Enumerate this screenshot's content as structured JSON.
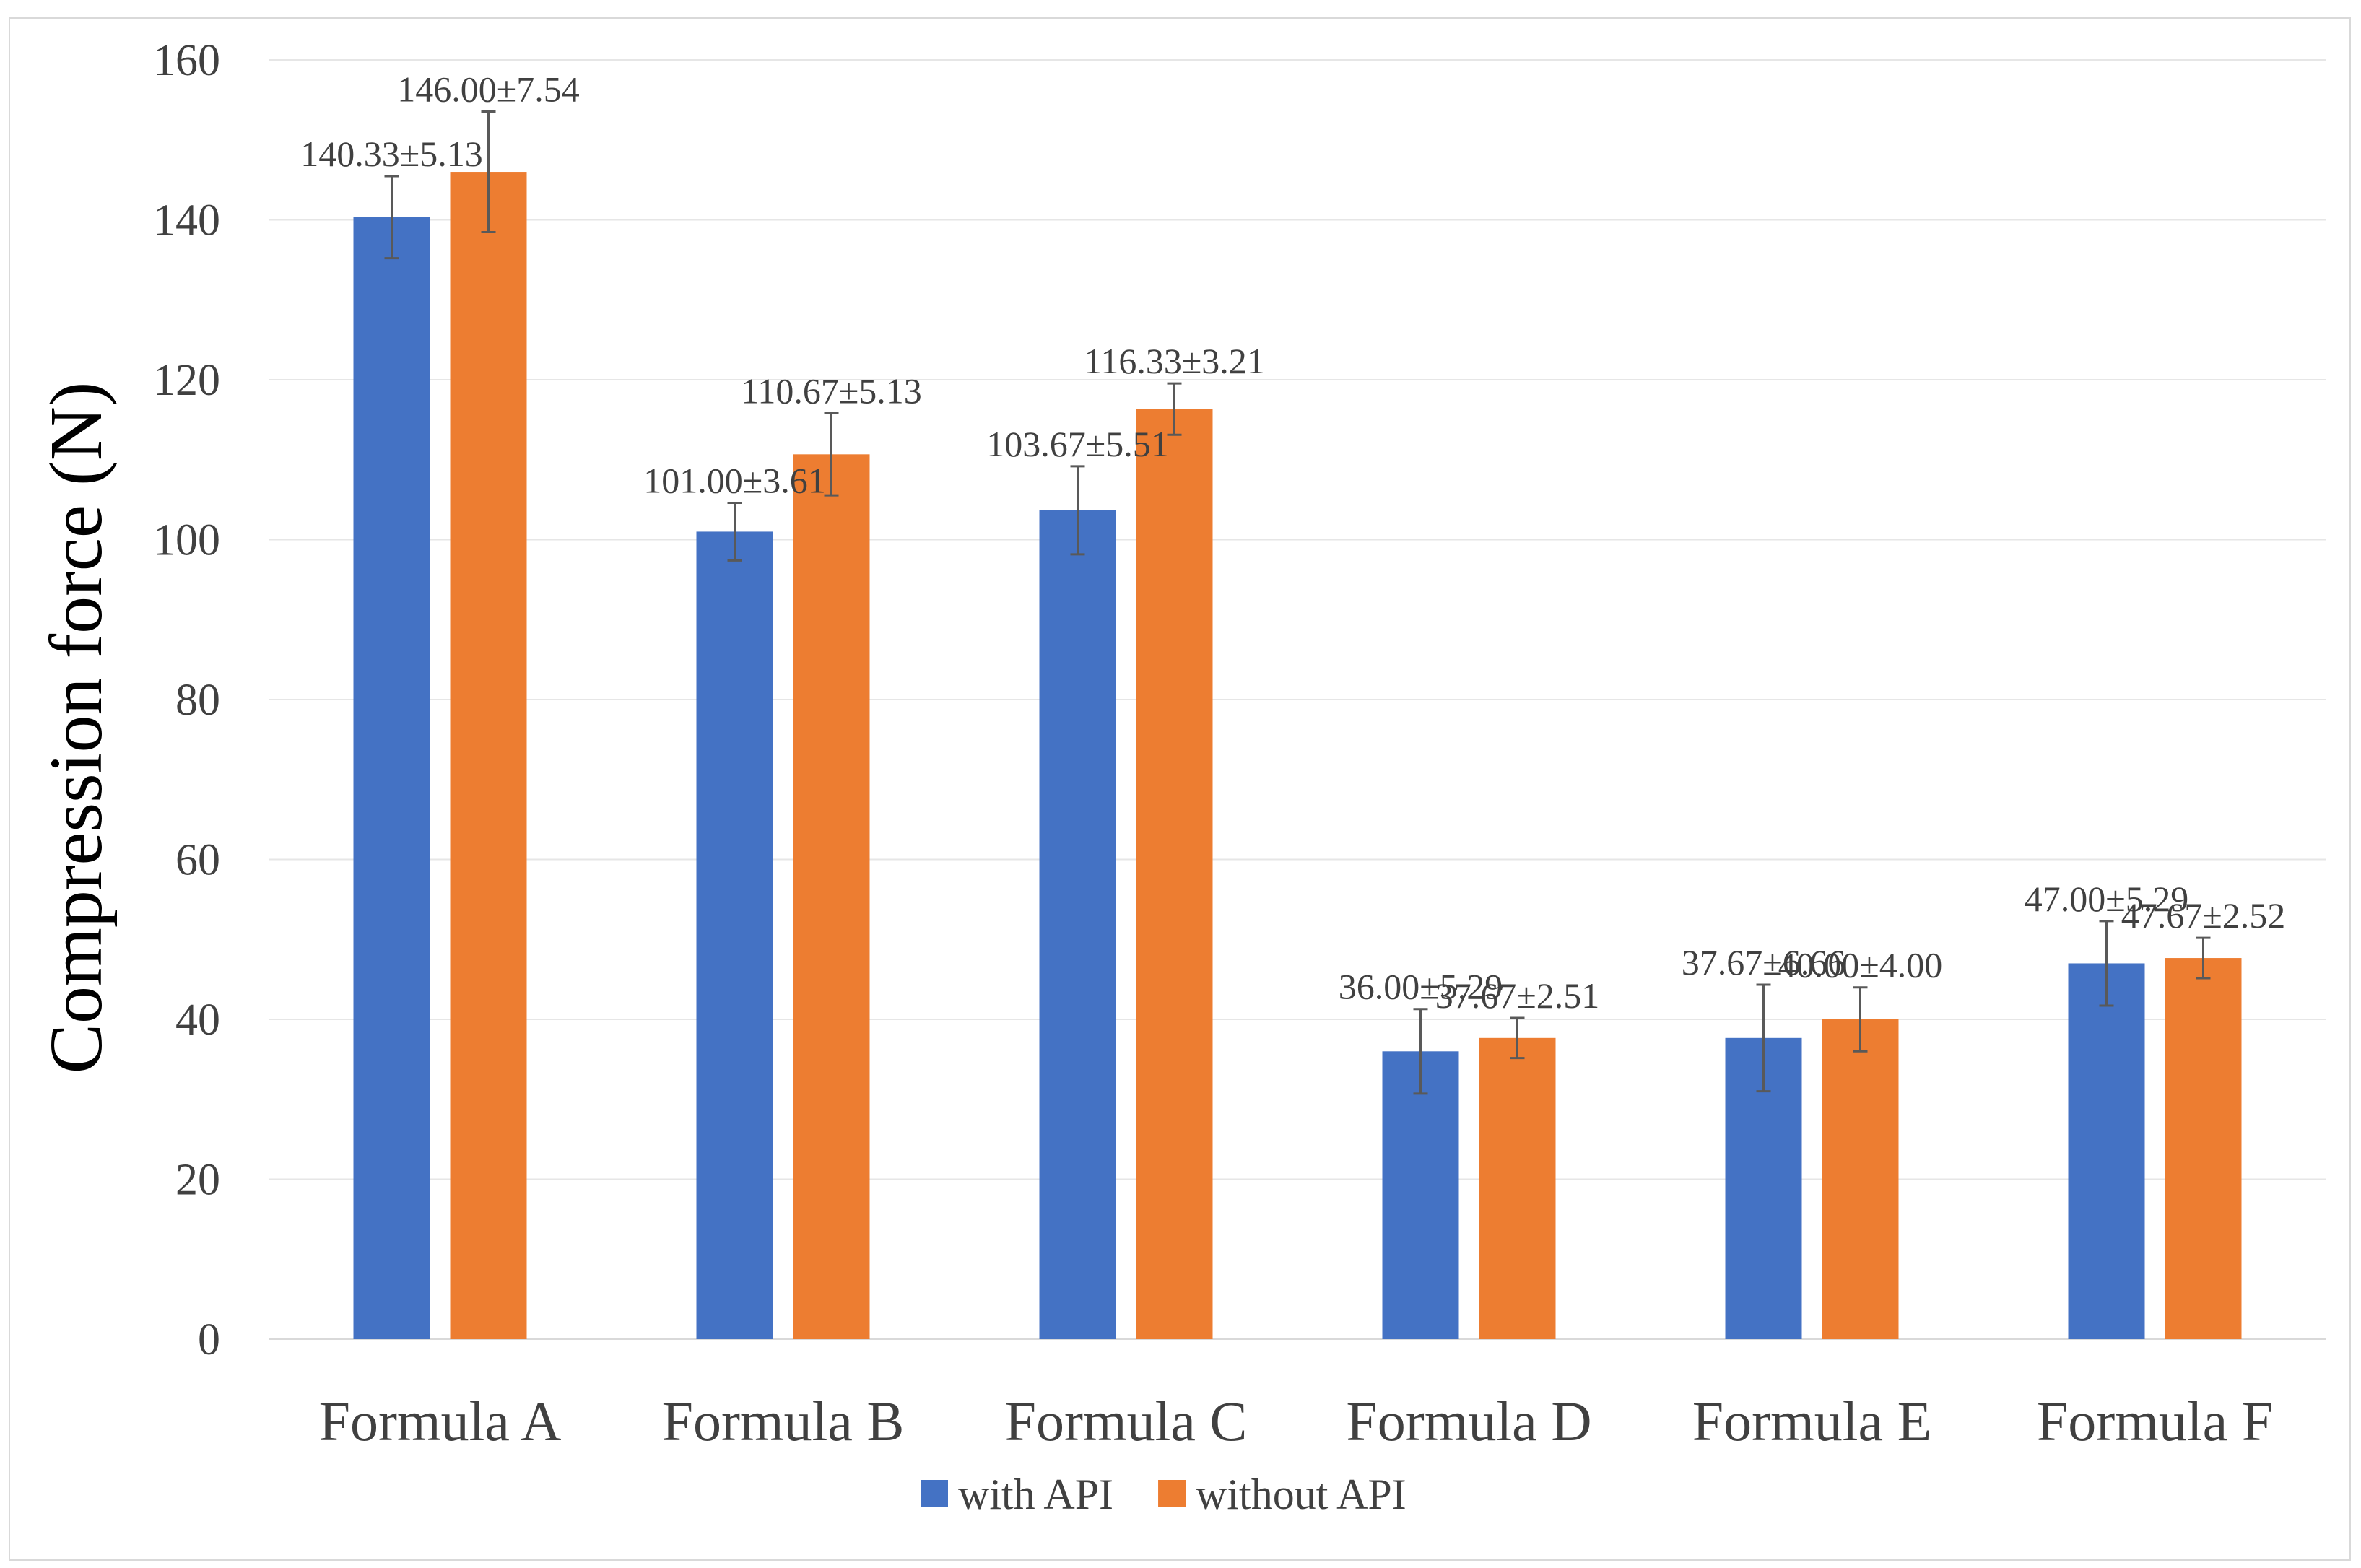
{
  "chart_data": {
    "type": "bar",
    "title": "",
    "xlabel": "",
    "ylabel": "Compression force (N)",
    "ylim": [
      0,
      160
    ],
    "yticks": [
      0,
      20,
      40,
      60,
      80,
      100,
      120,
      140,
      160
    ],
    "ytick_labels": [
      "0",
      "20",
      "40",
      "60",
      "80",
      "100",
      "120",
      "140",
      "160"
    ],
    "grid": true,
    "legend_position": "bottom",
    "categories": [
      "Formula A",
      "Formula B",
      "Formula C",
      "Formula D",
      "Formula E",
      "Formula F"
    ],
    "series": [
      {
        "name": "with API",
        "color": "#4472C4",
        "values": [
          140.33,
          101.0,
          103.67,
          36.0,
          37.67,
          47.0
        ],
        "errors": [
          5.13,
          3.61,
          5.51,
          5.29,
          6.66,
          5.29
        ],
        "labels": [
          "140.33±5.13",
          "101.00±3.61",
          "103.67±5.51",
          "36.00±5.29",
          "37.67±6.66",
          "47.00±5.29"
        ]
      },
      {
        "name": "without API",
        "color": "#ED7D31",
        "values": [
          146.0,
          110.67,
          116.33,
          37.67,
          40.0,
          47.67
        ],
        "errors": [
          7.54,
          5.13,
          3.21,
          2.51,
          4.0,
          2.52
        ],
        "labels": [
          "146.00±7.54",
          "110.67±5.13",
          "116.33±3.21",
          "37.67±2.51",
          "40.00±4.00",
          "47.67±2.52"
        ]
      }
    ]
  }
}
